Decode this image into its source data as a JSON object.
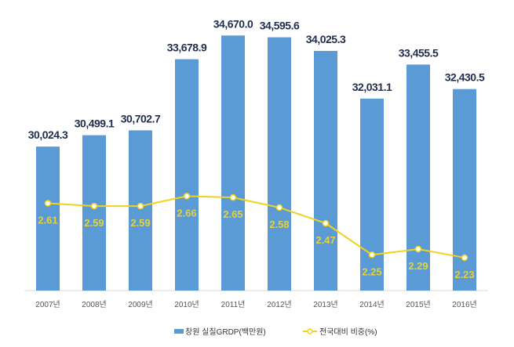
{
  "chart_data": {
    "type": "bar+line",
    "categories": [
      "2007년",
      "2008년",
      "2009년",
      "2010년",
      "2011년",
      "2012년",
      "2013년",
      "2014년",
      "2015년",
      "2016년"
    ],
    "series": [
      {
        "name": "창원 실질GRDP(백만원)",
        "type": "bar",
        "axis": "primary",
        "color": "#5b9bd5",
        "values": [
          30024.3,
          30499.1,
          30702.7,
          33678.9,
          34670.0,
          34595.6,
          34025.3,
          32031.1,
          33455.5,
          32430.5
        ],
        "labels": [
          "30,024.3",
          "30,499.1",
          "30,702.7",
          "33,678.9",
          "34,670.0",
          "34,595.6",
          "34,025.3",
          "32,031.1",
          "33,455.5",
          "32,430.5"
        ]
      },
      {
        "name": "전국대비 비중(%)",
        "type": "line",
        "axis": "secondary",
        "color": "#f2d21b",
        "values": [
          2.61,
          2.59,
          2.59,
          2.66,
          2.65,
          2.58,
          2.47,
          2.25,
          2.29,
          2.23
        ],
        "labels": [
          "2.61",
          "2.59",
          "2.59",
          "2.66",
          "2.65",
          "2.58",
          "2.47",
          "2.25",
          "2.29",
          "2.23"
        ]
      }
    ],
    "ylim": [
      24000,
      35500
    ],
    "y2lim": [
      2.0,
      3.92
    ],
    "axes_visible": false,
    "grid": false,
    "legend": "bottom"
  }
}
